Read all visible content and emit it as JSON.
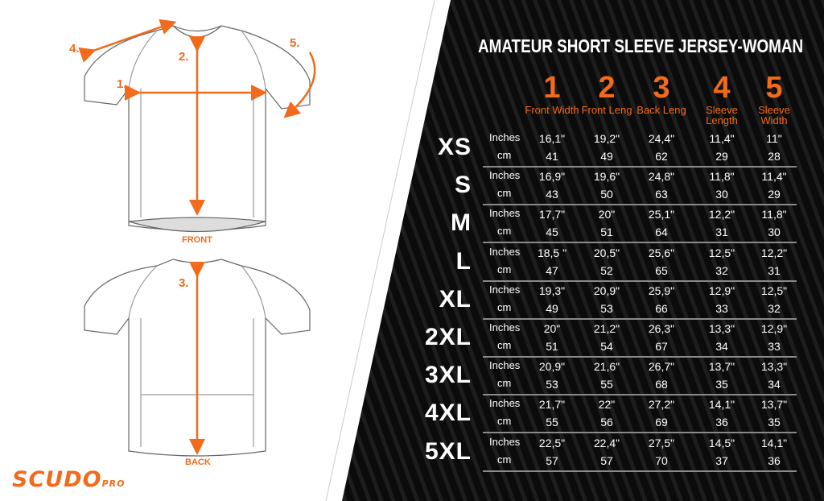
{
  "title": "AMATEUR SHORT SLEEVE JERSEY-WOMAN",
  "colors": {
    "accent": "#f26a1b",
    "background": "#0b0b0b",
    "text": "#ffffff"
  },
  "columns": [
    {
      "number": "1",
      "label": "Front Width"
    },
    {
      "number": "2",
      "label": "Front Leng"
    },
    {
      "number": "3",
      "label": "Back Leng"
    },
    {
      "number": "4",
      "label": "Sleeve Length"
    },
    {
      "number": "5",
      "label": "Sleeve Width"
    }
  ],
  "units": {
    "inches": "Inches",
    "cm": "cm"
  },
  "rows": [
    {
      "size": "XS",
      "inches": [
        "16,1\"",
        "19,2\"",
        "24,4\"",
        "11,4\"",
        "11\""
      ],
      "cm": [
        "41",
        "49",
        "62",
        "29",
        "28"
      ]
    },
    {
      "size": "S",
      "inches": [
        "16,9\"",
        "19,6\"",
        "24,8\"",
        "11,8\"",
        "11,4\""
      ],
      "cm": [
        "43",
        "50",
        "63",
        "30",
        "29"
      ]
    },
    {
      "size": "M",
      "inches": [
        "17,7\"",
        "20\"",
        "25,1\"",
        "12,2\"",
        "11,8\""
      ],
      "cm": [
        "45",
        "51",
        "64",
        "31",
        "30"
      ]
    },
    {
      "size": "L",
      "inches": [
        "18,5 \"",
        "20,5\"",
        "25,6\"",
        "12,5\"",
        "12,2\""
      ],
      "cm": [
        "47",
        "52",
        "65",
        "32",
        "31"
      ]
    },
    {
      "size": "XL",
      "inches": [
        "19,3\"",
        "20,9\"",
        "25,9\"",
        "12,9\"",
        "12,5\""
      ],
      "cm": [
        "49",
        "53",
        "66",
        "33",
        "32"
      ]
    },
    {
      "size": "2XL",
      "inches": [
        "20\"",
        "21,2\"",
        "26,3\"",
        "13,3\"",
        "12,9\""
      ],
      "cm": [
        "51",
        "54",
        "67",
        "34",
        "33"
      ]
    },
    {
      "size": "3XL",
      "inches": [
        "20,9\"",
        "21,6\"",
        "26,7\"",
        "13,7\"",
        "13,3\""
      ],
      "cm": [
        "53",
        "55",
        "68",
        "35",
        "34"
      ]
    },
    {
      "size": "4XL",
      "inches": [
        "21,7\"",
        "22\"",
        "27,2\"",
        "14,1\"",
        "13,7\""
      ],
      "cm": [
        "55",
        "56",
        "69",
        "36",
        "35"
      ]
    },
    {
      "size": "5XL",
      "inches": [
        "22,5\"",
        "22,4\"",
        "27,5\"",
        "14,5\"",
        "14,1\""
      ],
      "cm": [
        "57",
        "57",
        "70",
        "37",
        "36"
      ]
    }
  ],
  "diagram": {
    "front_caption": "FRONT",
    "back_caption": "BACK",
    "markers": [
      "1.",
      "2.",
      "3.",
      "4.",
      "5."
    ]
  },
  "logo": {
    "main": "SCUDO",
    "sub": "PRO"
  }
}
